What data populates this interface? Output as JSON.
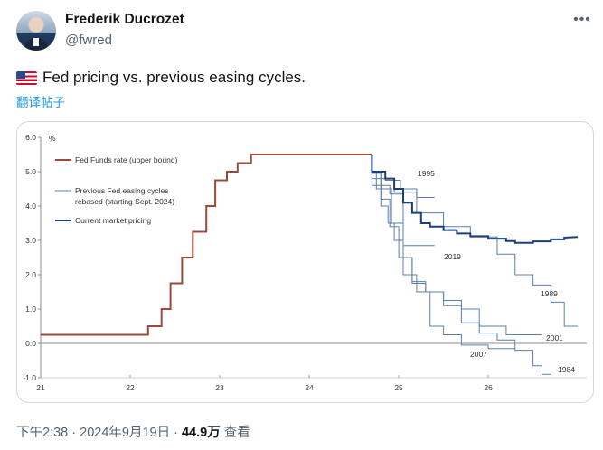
{
  "author": {
    "name": "Frederik Ducrozet",
    "handle": "@fwred"
  },
  "tweet": {
    "flag_icon": "us-flag-icon",
    "text": "Fed pricing vs. previous easing cycles.",
    "translate_label": "翻译帖子"
  },
  "meta": {
    "time": "下午2:38",
    "sep1": " · ",
    "date": "2024年9月19日",
    "sep2": " · ",
    "views": "44.9万",
    "views_label": " 查看"
  },
  "colors": {
    "fed_funds": "#9b4a3a",
    "previous_cycles": "#5b7fad",
    "current_pricing": "#1c3e7a",
    "axis": "#8c8c8c",
    "text_link": "#1d9bf0"
  },
  "chart_data": {
    "type": "line",
    "title": "",
    "ylabel": "%",
    "xlabel": "",
    "xlim": [
      21,
      27.1
    ],
    "ylim": [
      -1.0,
      6.0
    ],
    "x_ticks": [
      "21",
      "22",
      "23",
      "24",
      "25",
      "26"
    ],
    "y_ticks": [
      "6.0",
      "5.0",
      "4.0",
      "3.0",
      "2.0",
      "1.0",
      "0.0",
      "-1.0"
    ],
    "legend": {
      "fed_funds": "Fed Funds rate (upper bound)",
      "previous_line1": "Previous Fed easing cycles",
      "previous_line2": "rebased (starting Sept. 2024)",
      "current": "Current market pricing"
    },
    "annotations": [
      "1995",
      "2019",
      "1989",
      "2001",
      "2007",
      "1984"
    ],
    "series": [
      {
        "name": "Fed Funds rate (upper bound)",
        "kind": "fed_funds",
        "x": [
          21.0,
          22.2,
          22.2,
          22.35,
          22.35,
          22.45,
          22.45,
          22.58,
          22.58,
          22.7,
          22.7,
          22.85,
          22.85,
          22.95,
          22.95,
          23.08,
          23.08,
          23.2,
          23.2,
          23.35,
          23.35,
          23.58,
          23.58,
          24.7
        ],
        "y": [
          0.25,
          0.25,
          0.5,
          0.5,
          1.0,
          1.0,
          1.75,
          1.75,
          2.5,
          2.5,
          3.25,
          3.25,
          4.0,
          4.0,
          4.75,
          4.75,
          5.0,
          5.0,
          5.25,
          5.25,
          5.5,
          5.5,
          5.5,
          5.5
        ]
      },
      {
        "name": "1995",
        "kind": "previous",
        "x": [
          24.7,
          24.7,
          24.85,
          24.85,
          25.02,
          25.02,
          25.2,
          25.2,
          25.4
        ],
        "y": [
          5.5,
          5.0,
          5.0,
          4.75,
          4.75,
          4.5,
          4.5,
          4.25,
          4.25
        ]
      },
      {
        "name": "2019",
        "kind": "previous",
        "x": [
          24.7,
          24.7,
          24.8,
          24.8,
          24.9,
          24.9,
          25.05,
          25.05,
          25.4
        ],
        "y": [
          5.5,
          4.95,
          4.95,
          4.6,
          4.6,
          4.35,
          4.35,
          2.85,
          2.85
        ]
      },
      {
        "name": "1989",
        "kind": "previous",
        "x": [
          24.7,
          24.7,
          24.95,
          24.95,
          25.2,
          25.2,
          25.5,
          25.5,
          25.8,
          25.8,
          26.1,
          26.1,
          26.3,
          26.3,
          26.5,
          26.5,
          26.7,
          26.7,
          26.85,
          26.85,
          27.0
        ],
        "y": [
          5.5,
          4.8,
          4.8,
          4.4,
          4.4,
          3.8,
          3.8,
          3.4,
          3.4,
          3.1,
          3.1,
          2.6,
          2.6,
          2.0,
          2.0,
          1.7,
          1.7,
          1.2,
          1.2,
          0.5,
          0.5
        ]
      },
      {
        "name": "2001",
        "kind": "previous",
        "x": [
          24.7,
          24.7,
          24.75,
          24.75,
          24.8,
          24.8,
          24.88,
          24.88,
          24.95,
          24.95,
          25.05,
          25.05,
          25.15,
          25.15,
          25.3,
          25.3,
          25.5,
          25.5,
          25.7,
          25.7,
          25.9,
          25.9,
          26.2,
          26.2,
          26.6
        ],
        "y": [
          5.5,
          5.0,
          5.0,
          4.5,
          4.5,
          4.0,
          4.0,
          3.5,
          3.5,
          3.0,
          3.0,
          2.5,
          2.5,
          1.75,
          1.75,
          1.5,
          1.5,
          1.25,
          1.25,
          1.0,
          1.0,
          0.5,
          0.5,
          0.25,
          0.25
        ]
      },
      {
        "name": "2007",
        "kind": "previous",
        "x": [
          24.7,
          24.7,
          24.8,
          24.8,
          24.92,
          24.92,
          25.05,
          25.05,
          25.2,
          25.2,
          25.35,
          25.35,
          25.5,
          25.5,
          25.7,
          25.7,
          26.0,
          26.0,
          26.3
        ],
        "y": [
          5.5,
          5.0,
          5.0,
          4.5,
          4.5,
          3.5,
          3.5,
          2.0,
          2.0,
          1.5,
          1.5,
          0.5,
          0.5,
          0.25,
          0.25,
          -0.05,
          -0.05,
          -0.15,
          -0.15
        ]
      },
      {
        "name": "1984",
        "kind": "previous",
        "x": [
          24.7,
          24.7,
          24.8,
          24.8,
          24.9,
          24.9,
          25.0,
          25.0,
          25.15,
          25.15,
          25.3,
          25.3,
          25.5,
          25.5,
          25.7,
          25.7,
          25.9,
          25.9,
          26.1,
          26.1,
          26.3,
          26.3,
          26.5,
          26.5,
          26.6,
          26.6,
          26.7
        ],
        "y": [
          5.5,
          4.6,
          4.6,
          4.2,
          4.2,
          3.4,
          3.4,
          2.5,
          2.5,
          1.8,
          1.8,
          1.5,
          1.5,
          1.1,
          1.1,
          0.6,
          0.6,
          0.3,
          0.3,
          0.1,
          0.1,
          -0.2,
          -0.2,
          -0.65,
          -0.65,
          -0.9,
          -0.9
        ]
      },
      {
        "name": "Current market pricing",
        "kind": "current",
        "x": [
          24.7,
          24.7,
          24.85,
          24.85,
          24.95,
          24.95,
          25.05,
          25.05,
          25.15,
          25.15,
          25.25,
          25.25,
          25.35,
          25.35,
          25.5,
          25.5,
          25.65,
          25.65,
          25.8,
          25.8,
          26.0,
          26.0,
          26.2,
          26.2,
          26.3,
          26.3,
          26.5,
          26.5,
          26.7,
          26.7,
          26.85,
          26.85,
          27.0
        ],
        "y": [
          5.5,
          5.0,
          5.0,
          4.8,
          4.8,
          4.5,
          4.5,
          4.1,
          4.1,
          3.8,
          3.8,
          3.5,
          3.5,
          3.4,
          3.4,
          3.3,
          3.3,
          3.2,
          3.2,
          3.12,
          3.12,
          3.05,
          3.05,
          2.98,
          2.98,
          2.93,
          2.93,
          2.97,
          2.97,
          3.03,
          3.03,
          3.08,
          3.1
        ]
      }
    ]
  }
}
